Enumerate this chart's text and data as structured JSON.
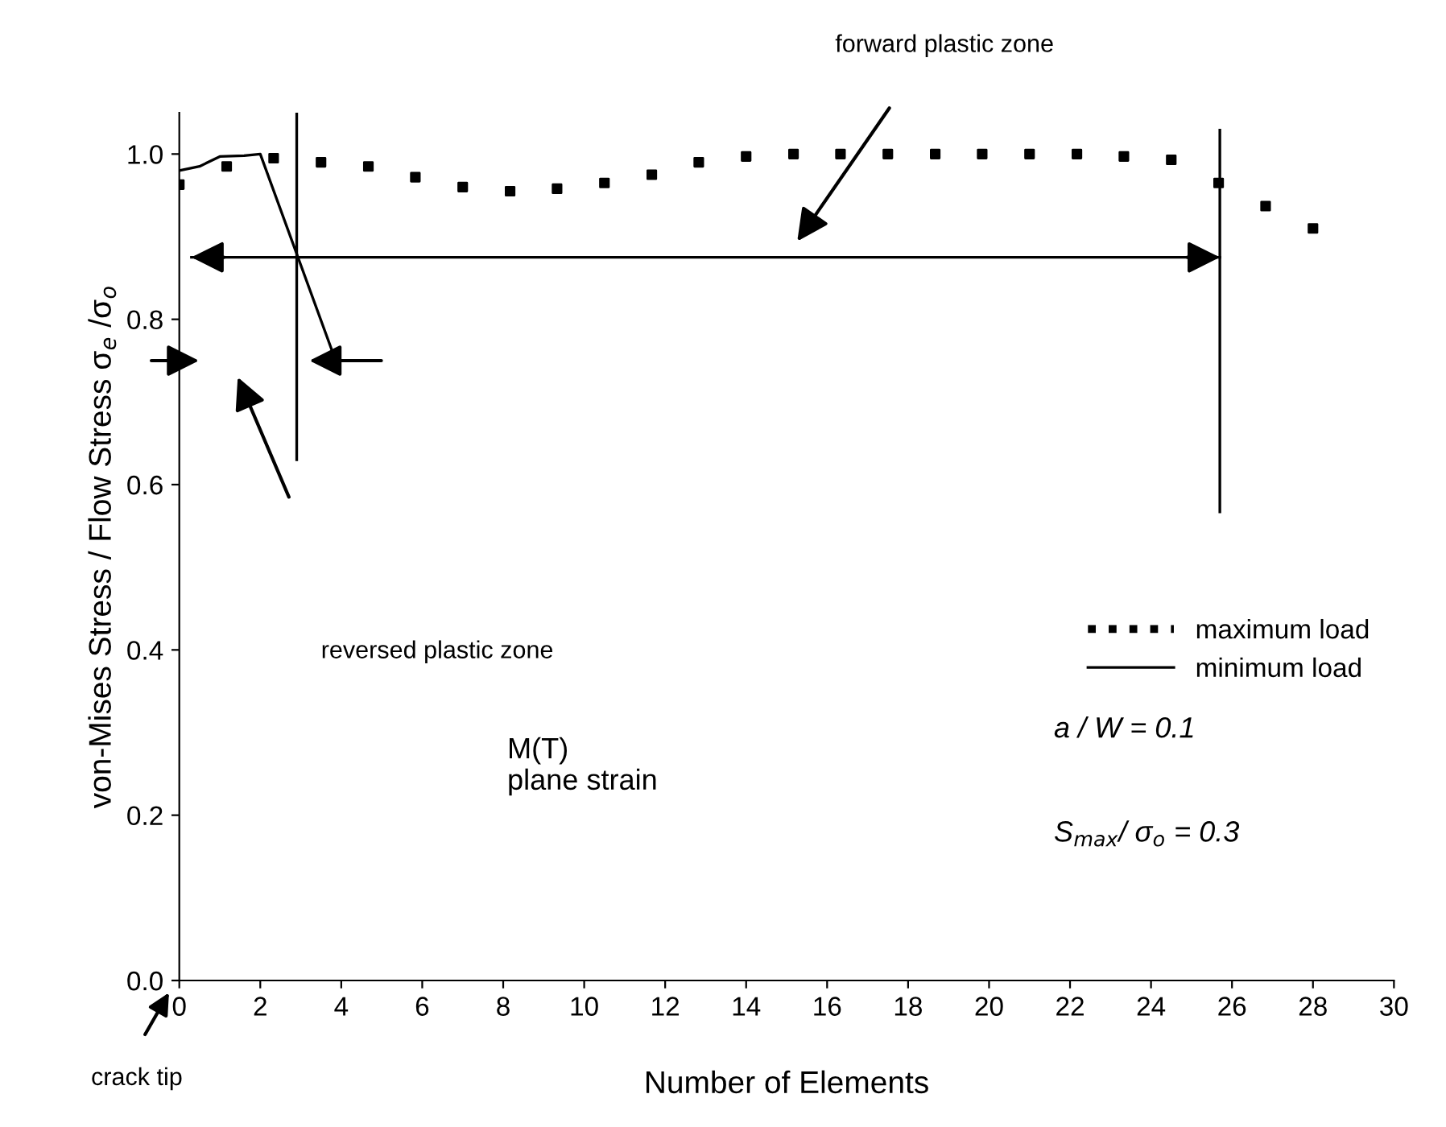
{
  "chart_data": {
    "type": "line",
    "xlabel": "Number of Elements",
    "ylabel": "von-Mises Stress / Flow Stress σ$_{e}$ /σ$_{o}$",
    "xlim": [
      0,
      30
    ],
    "xticks": [
      0,
      2,
      4,
      6,
      8,
      10,
      12,
      14,
      16,
      18,
      20,
      22,
      24,
      26,
      28,
      30
    ],
    "ylim": [
      0,
      1.05
    ],
    "yticks": [
      {
        "value": 0,
        "label": "0.0"
      },
      0.2,
      0.4,
      0.6,
      0.8,
      {
        "value": 1,
        "label": "1.0"
      }
    ],
    "grid": false,
    "legend": "right",
    "series": [
      {
        "name": "maximum load",
        "type": "scatter",
        "marker": "square",
        "color": "#000000",
        "x": [
          0,
          1.17,
          2.33,
          3.5,
          4.67,
          5.83,
          7,
          8.17,
          9.33,
          10.5,
          11.67,
          12.83,
          14,
          15.17,
          16.33,
          17.5,
          18.67,
          19.83,
          21,
          22.17,
          23.33,
          24.5,
          25.67,
          26.83,
          28
        ],
        "values": [
          0.963,
          0.985,
          0.995,
          0.99,
          0.985,
          0.972,
          0.96,
          0.955,
          0.958,
          0.965,
          0.975,
          0.99,
          0.997,
          1.0,
          1.0,
          1.0,
          1.0,
          1.0,
          1.0,
          1.0,
          0.997,
          0.993,
          0.965,
          0.937,
          0.91
        ]
      },
      {
        "name": "minimum load",
        "line_style": "solid",
        "color": "#000000",
        "x": [
          0,
          0.5,
          1,
          1.6,
          2,
          3.9
        ],
        "values": [
          0.98,
          0.985,
          0.997,
          0.998,
          1.0,
          0.745
        ]
      },
      {
        "type": "line",
        "line_style": "solid",
        "color": "#000000",
        "x": [
          0.3,
          25.7
        ],
        "values": [
          0.875,
          0.875
        ]
      }
    ],
    "ref_lines": [
      {
        "axis": "x",
        "value": 2.9,
        "label": null
      },
      {
        "axis": "x",
        "value": 25.7,
        "label": null
      }
    ],
    "annotations": [
      "forward plastic zone",
      "reversed plastic zone",
      "crack tip",
      "M(T)\nplane strain",
      "a / W = 0.1",
      "S$_{max}$/ σ$_{o}$ = 0.3"
    ]
  }
}
